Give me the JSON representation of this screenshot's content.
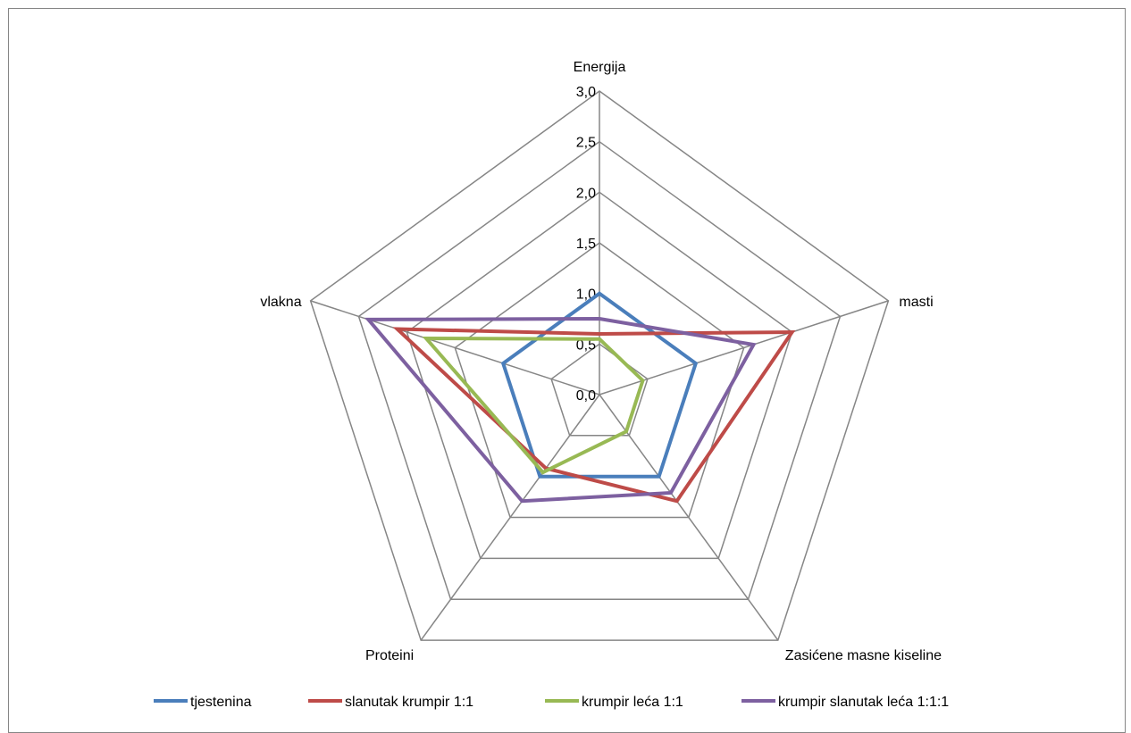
{
  "chart_data": {
    "type": "radar",
    "categories": [
      "Energija",
      "masti",
      "Zasićene masne kiseline",
      "Proteini",
      "vlakna"
    ],
    "rlim": [
      0,
      3.0
    ],
    "ticks": [
      "0,0",
      "0,5",
      "1,0",
      "1,5",
      "2,0",
      "2,5",
      "3,0"
    ],
    "tick_values": [
      0,
      0.5,
      1.0,
      1.5,
      2.0,
      2.5,
      3.0
    ],
    "grid": true,
    "legend_position": "bottom",
    "series": [
      {
        "name": "tjestenina",
        "color": "#4a7ebb",
        "values": [
          1.0,
          1.0,
          1.0,
          1.0,
          1.0
        ]
      },
      {
        "name": "slanutak krumpir 1:1",
        "color": "#be4b48",
        "values": [
          0.6,
          2.0,
          1.3,
          0.9,
          2.1
        ]
      },
      {
        "name": "krumpir leća 1:1",
        "color": "#98b954",
        "values": [
          0.55,
          0.45,
          0.45,
          0.95,
          1.8
        ]
      },
      {
        "name": "krumpir slanutak leća 1:1:1",
        "color": "#7d60a0",
        "values": [
          0.75,
          1.6,
          1.2,
          1.3,
          2.4
        ]
      }
    ]
  }
}
